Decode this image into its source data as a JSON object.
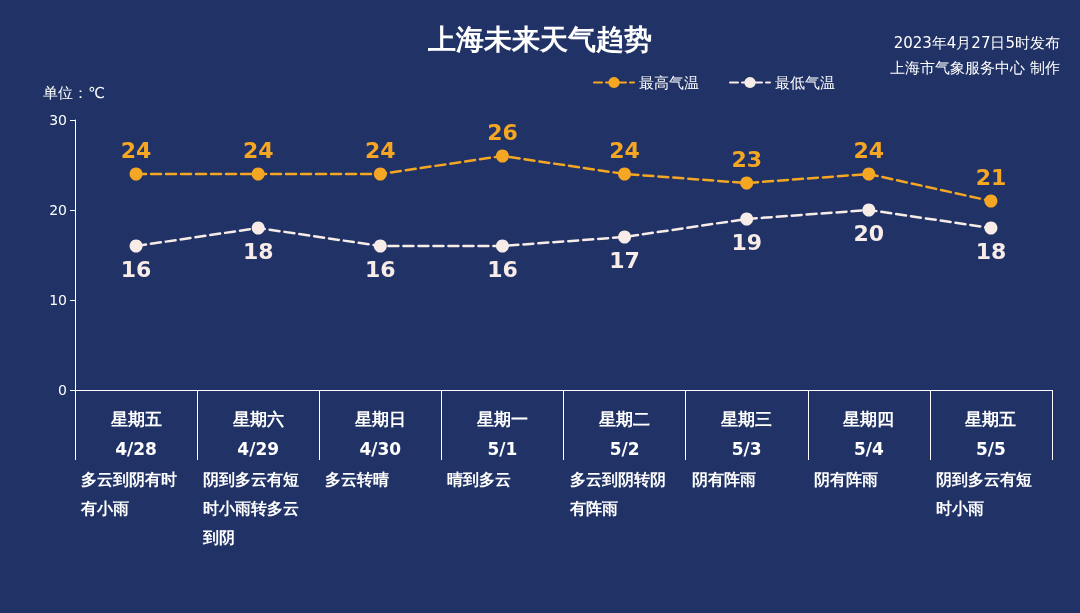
{
  "chart_data": {
    "type": "line",
    "title": "上海未来天气趋势",
    "ylabel": "单位：℃",
    "categories": [
      "星期五\n4/28",
      "星期六\n4/29",
      "星期日\n4/30",
      "星期一\n5/1",
      "星期二\n5/2",
      "星期三\n5/3",
      "星期四\n5/4",
      "星期五\n5/5"
    ],
    "series": [
      {
        "name": "最高气温",
        "color": "#f5a623",
        "values": [
          24,
          24,
          24,
          26,
          24,
          23,
          24,
          21
        ]
      },
      {
        "name": "最低气温",
        "color": "#f7ece8",
        "values": [
          16,
          18,
          16,
          16,
          17,
          19,
          20,
          18
        ]
      }
    ],
    "ylim": [
      0,
      30
    ],
    "yticks": [
      0,
      10,
      20,
      30
    ],
    "grid": false,
    "legend": "top right",
    "marker": "circle",
    "line_style": "dashed",
    "data_labels": true,
    "annotations": [
      "2023年4月27日5时发布",
      "上海市气象服务中心 制作",
      "多云到阴有时有小雨",
      "阴到多云有短时小雨转多云到阴",
      "多云转晴",
      "晴到多云",
      "多云到阴转阴有阵雨",
      "阴有阵雨",
      "阴有阵雨",
      "阴到多云有短时小雨"
    ]
  }
}
